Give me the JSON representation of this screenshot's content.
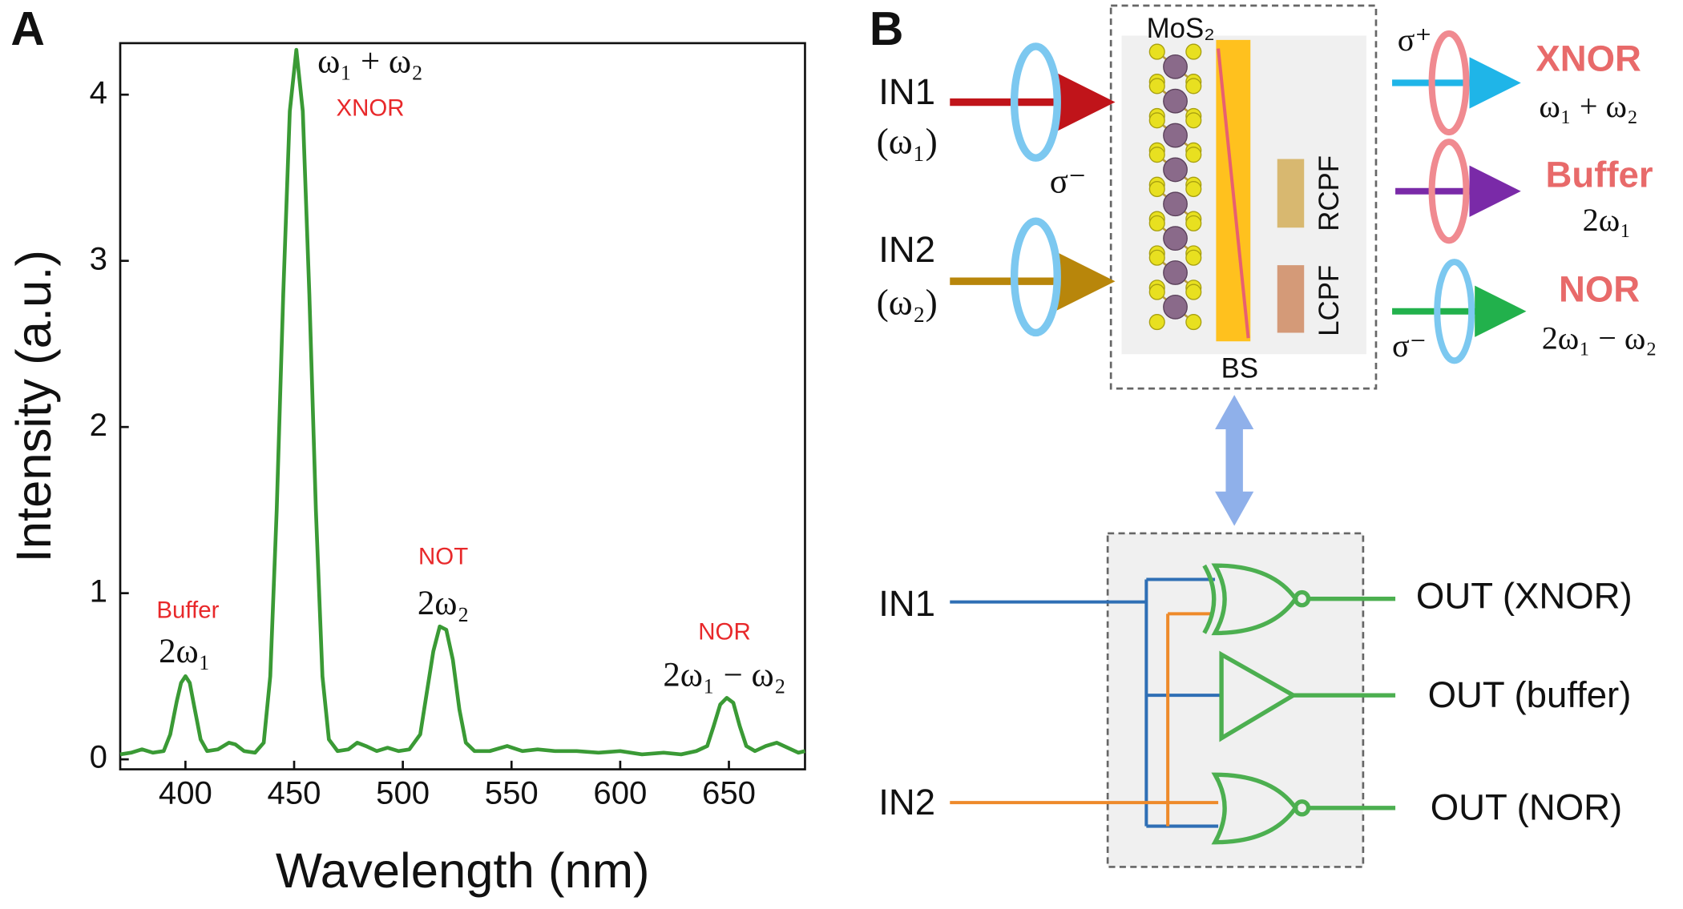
{
  "chart_data": {
    "type": "line",
    "panel": "A",
    "xlabel": "Wavelength (nm)",
    "ylabel": "Intensity (a.u.)",
    "x": [
      370,
      375,
      380,
      385,
      390,
      393,
      396,
      398,
      400,
      402,
      404,
      407,
      410,
      415,
      420,
      423,
      427,
      432,
      436,
      439,
      442,
      445,
      448,
      451,
      454,
      457,
      460,
      463,
      466,
      470,
      475,
      479,
      483,
      488,
      493,
      498,
      503,
      508,
      511,
      514,
      517,
      520,
      523,
      526,
      529,
      533,
      540,
      548,
      555,
      562,
      570,
      580,
      590,
      600,
      610,
      620,
      628,
      635,
      640,
      643,
      646,
      649,
      652,
      655,
      658,
      662,
      667,
      672,
      677,
      682,
      685
    ],
    "values": [
      0.03,
      0.04,
      0.06,
      0.04,
      0.05,
      0.15,
      0.35,
      0.46,
      0.5,
      0.46,
      0.32,
      0.12,
      0.05,
      0.06,
      0.1,
      0.09,
      0.05,
      0.04,
      0.1,
      0.5,
      1.5,
      2.8,
      3.9,
      4.27,
      3.9,
      2.8,
      1.5,
      0.5,
      0.12,
      0.05,
      0.06,
      0.1,
      0.08,
      0.05,
      0.07,
      0.05,
      0.06,
      0.15,
      0.4,
      0.65,
      0.8,
      0.78,
      0.6,
      0.3,
      0.1,
      0.05,
      0.05,
      0.08,
      0.05,
      0.06,
      0.05,
      0.05,
      0.04,
      0.05,
      0.03,
      0.04,
      0.03,
      0.05,
      0.08,
      0.2,
      0.33,
      0.37,
      0.34,
      0.2,
      0.08,
      0.05,
      0.08,
      0.1,
      0.07,
      0.04,
      0.05
    ],
    "color": "#3a9a35",
    "xlim": [
      370,
      685
    ],
    "ylim": [
      -0.06,
      4.31
    ],
    "xticks": [
      400,
      450,
      500,
      550,
      600,
      650
    ],
    "yticks": [
      0,
      1,
      2,
      3,
      4
    ],
    "annotations": [
      {
        "text": "Buffer",
        "color": "#e8282a"
      },
      {
        "text": "2ω₁",
        "color": "#111111"
      },
      {
        "text": "ω₁ + ω₂",
        "color": "#111111"
      },
      {
        "text": "XNOR",
        "color": "#e8282a"
      },
      {
        "text": "NOT",
        "color": "#e8282a"
      },
      {
        "text": "2ω₂",
        "color": "#111111"
      },
      {
        "text": "NOR",
        "color": "#e8282a"
      },
      {
        "text": "2ω₁ − ω₂",
        "color": "#111111"
      }
    ]
  },
  "diagram": {
    "panel": "B",
    "top": {
      "material": "MoS₂",
      "splitter": "BS",
      "filter_right": "RCPF",
      "filter_left": "LCPF",
      "inputs": [
        {
          "name": "IN1",
          "freq": "(ω₁)"
        },
        {
          "name": "IN2",
          "freq": "(ω₂)"
        }
      ],
      "input_polarization": "σ⁻",
      "out_polarization_top": "σ⁺",
      "out_polarization_bottom": "σ⁻",
      "outputs": [
        {
          "gate": "XNOR",
          "freq": "ω₁ + ω₂"
        },
        {
          "gate": "Buffer",
          "freq": "2ω₁"
        },
        {
          "gate": "NOR",
          "freq": "2ω₁ − ω₂"
        }
      ]
    },
    "circuit": {
      "inputs": [
        "IN1",
        "IN2"
      ],
      "outputs": [
        "OUT (XNOR)",
        "OUT (buffer)",
        "OUT (NOR)"
      ]
    }
  }
}
